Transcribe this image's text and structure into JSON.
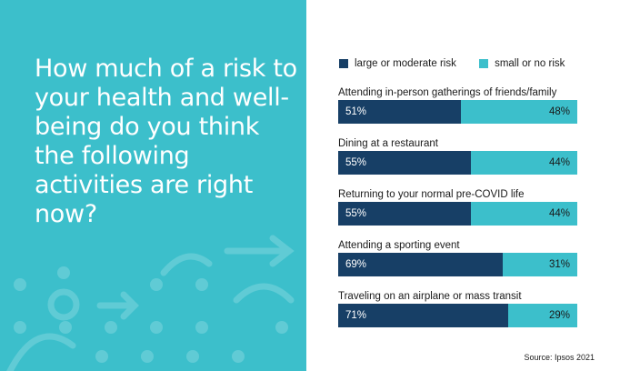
{
  "headline": "How much of a risk to your health and well-being do you think the following activities are right now?",
  "colors": {
    "panel": "#3cbfcb",
    "large": "#173f66",
    "small": "#3cbfcb"
  },
  "source": "Source: Ipsos 2021",
  "chart_data": {
    "type": "bar",
    "orientation": "horizontal",
    "stacked": true,
    "title": "How much of a risk to your health and well-being do you think the following activities are right now?",
    "legend": [
      "large or moderate risk",
      "small or no risk"
    ],
    "legend_position": "top",
    "categories": [
      "Attending in-person gatherings of friends/family",
      "Dining at a restaurant",
      "Returning to your normal pre-COVID life",
      "Attending a sporting event",
      "Traveling on an airplane or mass transit"
    ],
    "series": [
      {
        "name": "large or moderate risk",
        "values": [
          51,
          55,
          55,
          69,
          71
        ],
        "labels": [
          "51%",
          "55%",
          "55%",
          "69%",
          "71%"
        ]
      },
      {
        "name": "small or no risk",
        "values": [
          48,
          44,
          44,
          31,
          29
        ],
        "labels": [
          "48%",
          "44%",
          "44%",
          "31%",
          "29%"
        ]
      }
    ],
    "xlim": [
      0,
      100
    ],
    "grid": false
  }
}
